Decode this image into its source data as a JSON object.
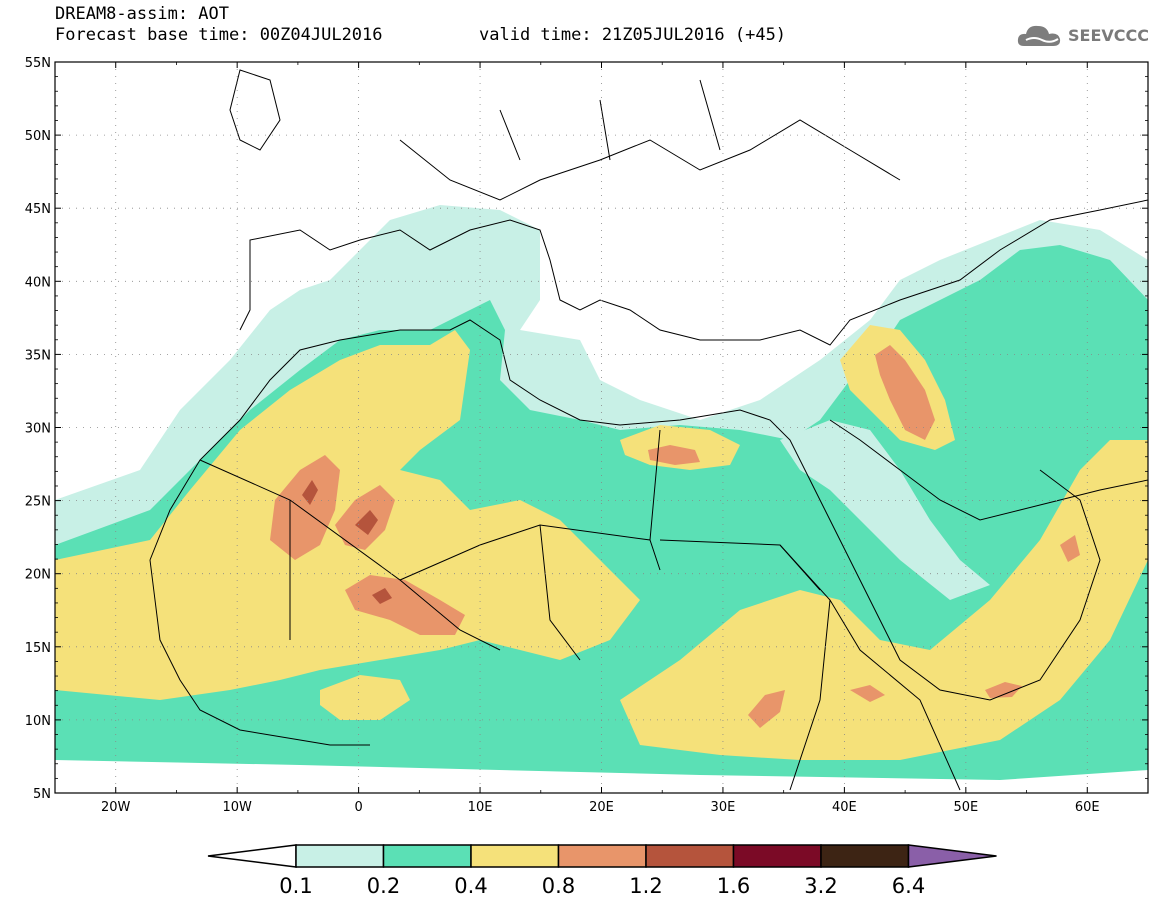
{
  "header": {
    "title": "DREAM8-assim: AOT",
    "forecast_base": "Forecast base time: 00Z04JUL2016",
    "valid_time": "valid time: 21Z05JUL2016 (+45)"
  },
  "logo": {
    "text": "SEEVCCC",
    "icon": "cloud-icon"
  },
  "map": {
    "lat_labels": [
      "55N",
      "50N",
      "45N",
      "40N",
      "35N",
      "30N",
      "25N",
      "20N",
      "15N",
      "10N",
      "5N"
    ],
    "lon_labels": [
      "20W",
      "10W",
      "0",
      "10E",
      "20E",
      "30E",
      "40E",
      "50E",
      "60E"
    ],
    "lon_range": [
      -25,
      65
    ],
    "lat_range": [
      5,
      55
    ]
  },
  "colorbar": {
    "levels": [
      "0.1",
      "0.2",
      "0.4",
      "0.8",
      "1.2",
      "1.6",
      "3.2",
      "6.4"
    ],
    "colors": [
      "#ffffff",
      "#c8f0e6",
      "#5be0b5",
      "#f5e17a",
      "#e8956a",
      "#b5543c",
      "#7b0a26",
      "#3d2414",
      "#8a5fa8"
    ]
  }
}
